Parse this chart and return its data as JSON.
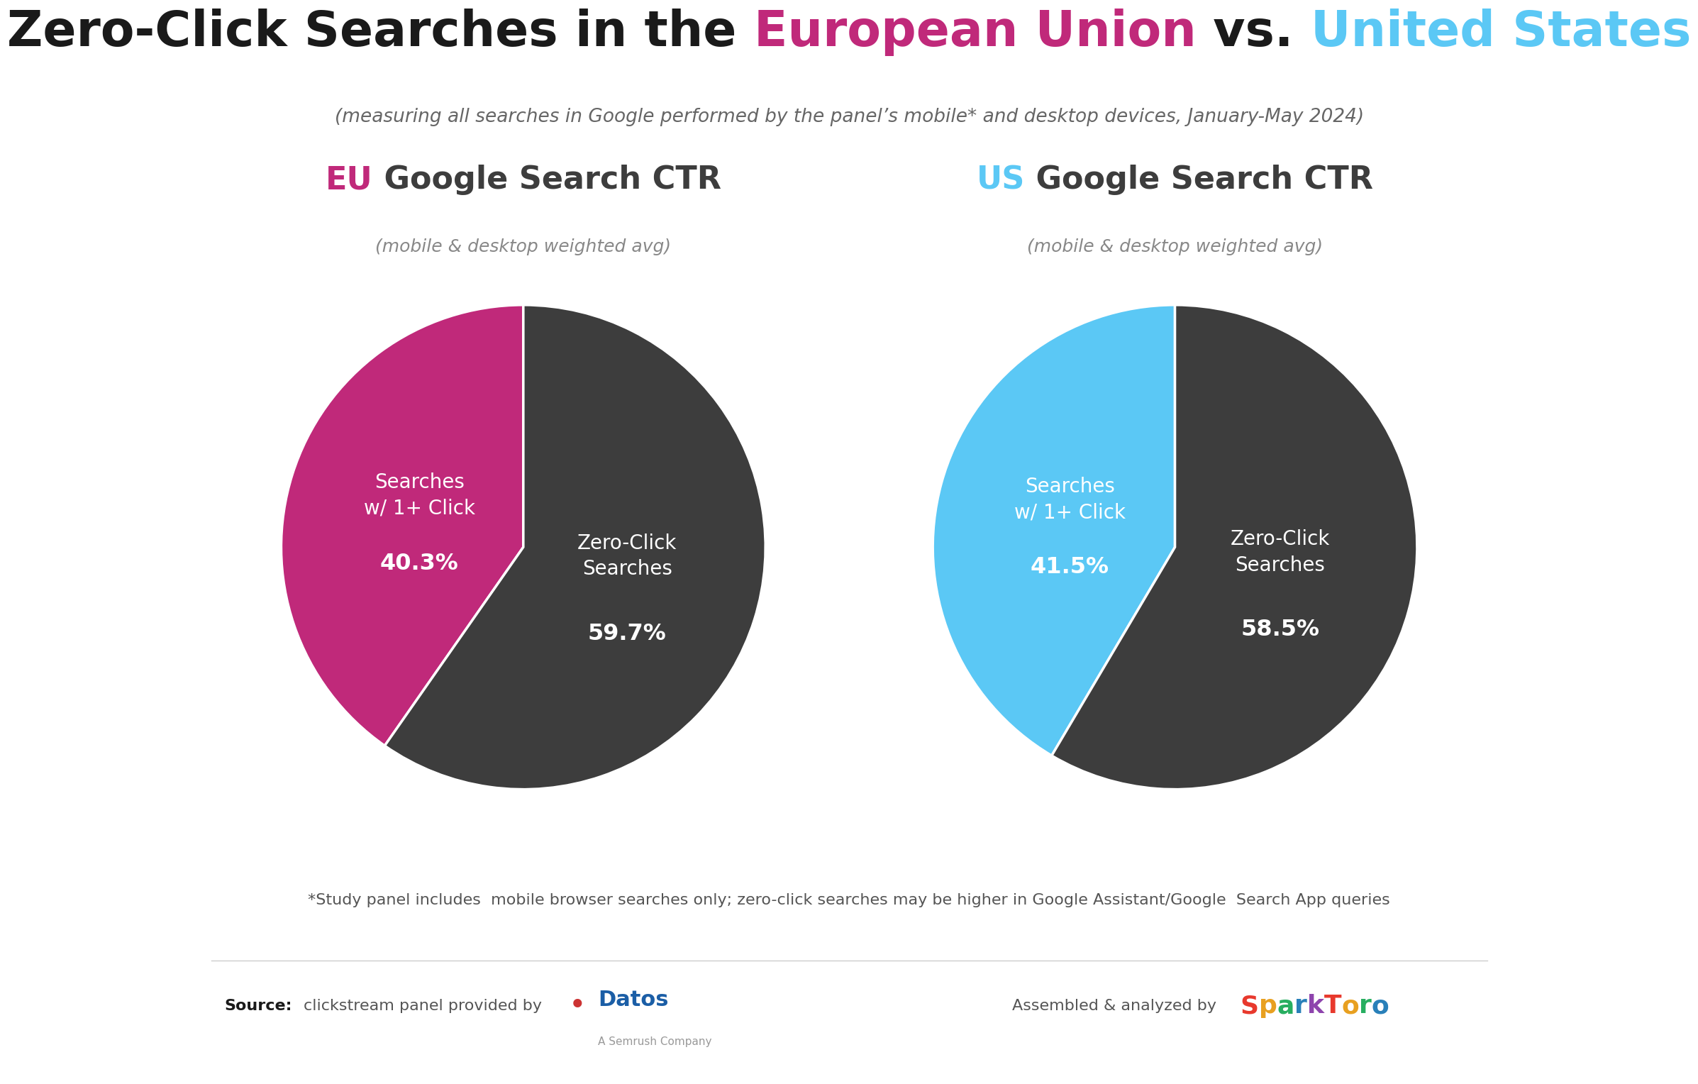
{
  "title_parts": [
    {
      "text": "Zero-Click Searches in the ",
      "color": "#1a1a1a",
      "bold": true
    },
    {
      "text": "European Union",
      "color": "#c0297a",
      "bold": true
    },
    {
      "text": " vs. ",
      "color": "#1a1a1a",
      "bold": true
    },
    {
      "text": "United States",
      "color": "#5bc8f5",
      "bold": true
    }
  ],
  "subtitle": "(measuring all searches in Google performed by the panel’s mobile* and desktop devices, January-May 2024)",
  "eu_title_parts": [
    {
      "text": "EU",
      "color": "#c0297a",
      "bold": true
    },
    {
      "text": " Google Search CTR",
      "color": "#3d3d3d",
      "bold": true
    }
  ],
  "us_title_parts": [
    {
      "text": "US",
      "color": "#5bc8f5",
      "bold": true
    },
    {
      "text": " Google Search CTR",
      "color": "#3d3d3d",
      "bold": true
    }
  ],
  "chart_subtitle": "(mobile & desktop weighted avg)",
  "eu_values": [
    40.3,
    59.7
  ],
  "us_values": [
    41.5,
    58.5
  ],
  "eu_colors": [
    "#c0297a",
    "#3d3d3d"
  ],
  "us_colors": [
    "#5bc8f5",
    "#3d3d3d"
  ],
  "footnote": "*Study panel includes  mobile browser searches only; zero-click searches may be higher in Google Assistant/Google  Search App queries",
  "background_color": "#ffffff",
  "start_angle": 90,
  "eu_label1": "Searches\nw/ 1+ Click",
  "eu_pct1": "40.3%",
  "eu_label2": "Zero-Click\nSearches",
  "eu_pct2": "59.7%",
  "us_label1": "Searches\nw/ 1+ Click",
  "us_pct1": "41.5%",
  "us_label2": "Zero-Click\nSearches",
  "us_pct2": "58.5%"
}
